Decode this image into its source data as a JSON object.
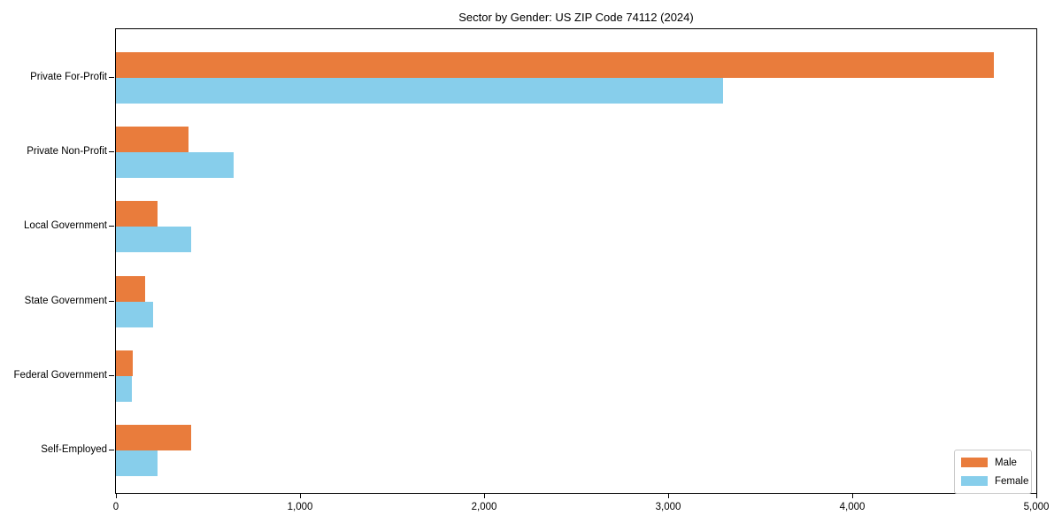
{
  "title": "Sector by Gender: US ZIP Code 74112 (2024)",
  "colors": {
    "male": "#E97C3C",
    "female": "#87CEEB",
    "axis": "#000000",
    "legend_border": "#c9c9c9",
    "background": "#ffffff"
  },
  "chart_data": {
    "type": "bar",
    "orientation": "horizontal",
    "title": "Sector by Gender: US ZIP Code 74112 (2024)",
    "xlabel": "",
    "ylabel": "",
    "categories": [
      "Private For-Profit",
      "Private Non-Profit",
      "Local Government",
      "State Government",
      "Federal Government",
      "Self-Employed"
    ],
    "series": [
      {
        "name": "Male",
        "color": "#E97C3C",
        "values": [
          4770,
          395,
          225,
          160,
          90,
          410
        ]
      },
      {
        "name": "Female",
        "color": "#87CEEB",
        "values": [
          3300,
          640,
          410,
          200,
          85,
          225
        ]
      }
    ],
    "xlim": [
      0,
      5000
    ],
    "xticks": [
      0,
      1000,
      2000,
      3000,
      4000,
      5000
    ],
    "xtick_labels": [
      "0",
      "1,000",
      "2,000",
      "3,000",
      "4,000",
      "5,000"
    ],
    "grid": false,
    "legend": {
      "position": "lower right",
      "entries": [
        "Male",
        "Female"
      ]
    }
  }
}
